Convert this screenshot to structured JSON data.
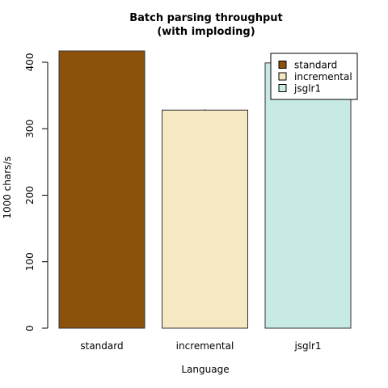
{
  "chart_data": {
    "type": "bar",
    "title": [
      "Batch parsing throughput",
      "(with imploding)"
    ],
    "xlabel": "Language",
    "ylabel": "1000 chars/s",
    "categories": [
      "standard",
      "incremental",
      "jsglr1"
    ],
    "values": [
      417,
      328,
      399
    ],
    "error_bars": [
      0,
      1,
      0
    ],
    "colors": [
      "#8C510A",
      "#F6E8C3",
      "#C7EAE5"
    ],
    "ylim": [
      0,
      420
    ],
    "yticks": [
      0,
      100,
      200,
      300,
      400
    ],
    "legend": {
      "position": "top-right",
      "entries": [
        "standard",
        "incremental",
        "jsglr1"
      ]
    },
    "grid": false
  }
}
